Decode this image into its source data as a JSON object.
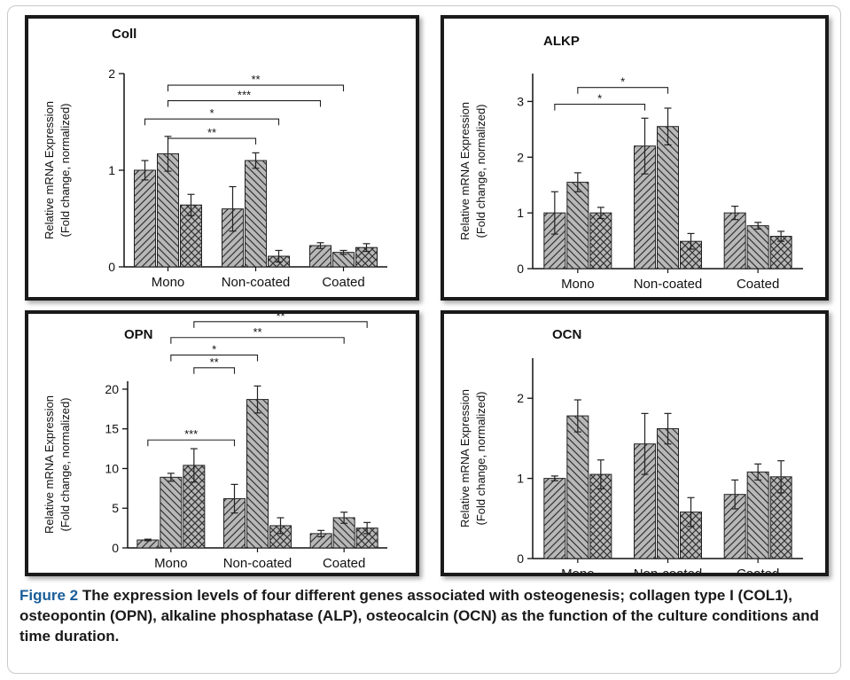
{
  "caption": {
    "label": "Figure 2",
    "text": " The expression levels of four different genes associated with osteogenesis; collagen type I (COL1), osteopontin (OPN), alkaline phosphatase (ALP), osteocalcin (OCN) as the function of the culture conditions and time duration."
  },
  "colors": {
    "bar_fill": "#b8b8b8",
    "bar_stroke": "#222222",
    "frame": "#1a1a1a"
  },
  "chart_data": [
    {
      "type": "bar",
      "title": "Coll",
      "ylabel": [
        "Relative mRNA Expression",
        "(Fold change, normalized)"
      ],
      "categories": [
        "Mono",
        "Non-coated",
        "Coated"
      ],
      "ylim": [
        0,
        2
      ],
      "yticks": [
        0,
        1,
        2
      ],
      "series": [
        {
          "pattern": "diag-right",
          "values": [
            1.0,
            0.6,
            0.22
          ],
          "errors": [
            0.1,
            0.23,
            0.03
          ]
        },
        {
          "pattern": "diag-left",
          "values": [
            1.17,
            1.1,
            0.15
          ],
          "errors": [
            0.18,
            0.08,
            0.02
          ]
        },
        {
          "pattern": "cross",
          "values": [
            0.64,
            0.11,
            0.2
          ],
          "errors": [
            0.11,
            0.06,
            0.04
          ]
        }
      ],
      "significance": [
        {
          "label": "**",
          "from": [
            0,
            1
          ],
          "to": [
            2,
            1
          ],
          "level": 1.88
        },
        {
          "label": "***",
          "from": [
            0,
            1
          ],
          "to": [
            2,
            0
          ],
          "level": 1.72
        },
        {
          "label": "*",
          "from": [
            0,
            0
          ],
          "to": [
            1,
            2
          ],
          "level": 1.53
        },
        {
          "label": "**",
          "from": [
            0,
            1
          ],
          "to": [
            1,
            1
          ],
          "level": 1.33
        }
      ]
    },
    {
      "type": "bar",
      "title": "ALKP",
      "ylabel": [
        "Relative mRNA Expression",
        "(Fold change, normalized)"
      ],
      "categories": [
        "Mono",
        "Non-coated",
        "Coated"
      ],
      "ylim": [
        0,
        3.5
      ],
      "yticks": [
        0,
        1,
        2,
        3
      ],
      "series": [
        {
          "pattern": "diag-right",
          "values": [
            1.0,
            2.2,
            1.0
          ],
          "errors": [
            0.38,
            0.5,
            0.12
          ]
        },
        {
          "pattern": "diag-left",
          "values": [
            1.55,
            2.55,
            0.77
          ],
          "errors": [
            0.17,
            0.33,
            0.06
          ]
        },
        {
          "pattern": "cross",
          "values": [
            1.0,
            0.49,
            0.58
          ],
          "errors": [
            0.1,
            0.14,
            0.09
          ]
        }
      ],
      "significance": [
        {
          "label": "*",
          "from": [
            0,
            1
          ],
          "to": [
            1,
            1
          ],
          "level": 3.25
        },
        {
          "label": "*",
          "from": [
            0,
            0
          ],
          "to": [
            1,
            0
          ],
          "level": 2.95
        }
      ]
    },
    {
      "type": "bar",
      "title": "OPN",
      "ylabel": [
        "Relative mRNA Expression",
        "(Fold change, normalized)"
      ],
      "categories": [
        "Mono",
        "Non-coated",
        "Coated"
      ],
      "ylim": [
        0,
        21
      ],
      "yticks": [
        0,
        5,
        10,
        15,
        20
      ],
      "series": [
        {
          "pattern": "diag-right",
          "values": [
            1.0,
            6.2,
            1.8
          ],
          "errors": [
            0.1,
            1.8,
            0.4
          ]
        },
        {
          "pattern": "diag-left",
          "values": [
            8.9,
            18.7,
            3.8
          ],
          "errors": [
            0.5,
            1.7,
            0.7
          ]
        },
        {
          "pattern": "cross",
          "values": [
            10.4,
            2.8,
            2.5
          ],
          "errors": [
            2.1,
            1.0,
            0.7
          ]
        }
      ],
      "significance": [
        {
          "label": "**",
          "from": [
            0,
            2
          ],
          "to": [
            2,
            2
          ],
          "level": 28.5
        },
        {
          "label": "**",
          "from": [
            0,
            1
          ],
          "to": [
            2,
            1
          ],
          "level": 26.5
        },
        {
          "label": "*",
          "from": [
            0,
            1
          ],
          "to": [
            1,
            1
          ],
          "level": 24.3
        },
        {
          "label": "**",
          "from": [
            0,
            2
          ],
          "to": [
            1,
            0
          ],
          "level": 22.7
        },
        {
          "label": "***",
          "from": [
            0,
            0
          ],
          "to": [
            1,
            0
          ],
          "level": 13.6
        }
      ]
    },
    {
      "type": "bar",
      "title": "OCN",
      "ylabel": [
        "Relative mRNA Expression",
        "(Fold change, normalized)"
      ],
      "categories": [
        "Mono",
        "Non-coated",
        "Coated"
      ],
      "ylim": [
        0,
        2.5
      ],
      "yticks": [
        0,
        1,
        2
      ],
      "series": [
        {
          "pattern": "diag-right",
          "values": [
            1.0,
            1.43,
            0.8
          ],
          "errors": [
            0.03,
            0.38,
            0.18
          ]
        },
        {
          "pattern": "diag-left",
          "values": [
            1.78,
            1.62,
            1.08
          ],
          "errors": [
            0.2,
            0.19,
            0.1
          ]
        },
        {
          "pattern": "cross",
          "values": [
            1.05,
            0.58,
            1.02
          ],
          "errors": [
            0.18,
            0.18,
            0.2
          ]
        }
      ],
      "significance": []
    }
  ]
}
